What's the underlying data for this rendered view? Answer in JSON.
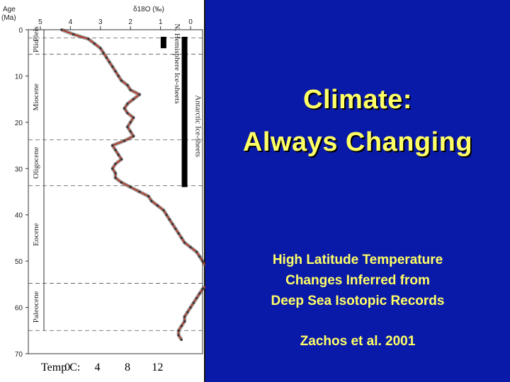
{
  "slide": {
    "title_lines": [
      "Climate:",
      "Always Changing"
    ],
    "subtitle_lines": [
      "High Latitude Temperature",
      "Changes Inferred from",
      "Deep Sea Isotopic Records"
    ],
    "citation": "Zachos et al. 2001",
    "colors": {
      "background": "#0a1aa8",
      "text": "#ffff66",
      "curve": "#b23a2a"
    }
  },
  "chart_data": {
    "type": "line",
    "title": "δ18O (‰)",
    "ylabel_lines": [
      "Age",
      "(Ma)"
    ],
    "x_axis": {
      "ticks": [
        5,
        4,
        3,
        2,
        1,
        0
      ],
      "range": [
        5.4,
        -0.4
      ],
      "position": "top"
    },
    "y_axis": {
      "ticks": [
        0,
        10,
        20,
        30,
        40,
        50,
        60,
        70
      ],
      "range": [
        0,
        70
      ],
      "reversed": true
    },
    "temp_scale": {
      "label": "Temp C:",
      "ticks": [
        "0",
        "4",
        "8",
        "12"
      ],
      "positions_d18O": [
        4.1,
        3.1,
        2.1,
        1.1
      ]
    },
    "epochs": [
      {
        "name": "Pleis",
        "top": 0,
        "bottom": 1.8
      },
      {
        "name": "Plio",
        "top": 1.8,
        "bottom": 5.3
      },
      {
        "name": "Miocene",
        "top": 5.3,
        "bottom": 23.8
      },
      {
        "name": "Oligocene",
        "top": 23.8,
        "bottom": 33.7
      },
      {
        "name": "Eocene",
        "top": 33.7,
        "bottom": 54.8
      },
      {
        "name": "Paleocene",
        "top": 54.8,
        "bottom": 65.0
      }
    ],
    "ice_sheets": [
      {
        "name": "N. Hemisphere Ice-sheets",
        "from_age": 0,
        "to_age": 4,
        "d18O": 0.9
      },
      {
        "name": "Antarctic Ice-sheets",
        "from_age": 0,
        "to_age": 34,
        "d18O": 0.2
      }
    ],
    "series": [
      {
        "x": [
          0,
          1,
          2,
          3,
          4,
          5,
          6,
          7,
          8,
          9,
          10,
          11,
          12,
          13,
          14,
          15,
          16,
          17,
          18,
          19,
          20,
          21,
          22,
          23,
          24,
          25,
          26,
          27,
          28,
          29,
          30,
          31,
          32,
          33,
          34,
          35,
          36,
          37,
          38,
          39,
          40,
          41,
          42,
          43,
          44,
          45,
          46,
          47,
          48,
          49,
          50,
          51,
          52,
          53,
          54,
          55,
          56,
          57,
          58,
          59,
          60,
          61,
          62,
          63,
          64,
          65,
          66,
          67
        ],
        "y": [
          4.3,
          3.9,
          3.4,
          3.2,
          3.0,
          2.9,
          2.8,
          2.7,
          2.6,
          2.5,
          2.4,
          2.3,
          2.1,
          2.0,
          1.7,
          1.9,
          2.1,
          2.2,
          2.1,
          1.9,
          2.0,
          2.1,
          2.0,
          1.9,
          2.2,
          2.6,
          2.5,
          2.4,
          2.3,
          2.5,
          2.6,
          2.5,
          2.5,
          2.3,
          2.0,
          1.7,
          1.4,
          1.3,
          1.1,
          0.9,
          0.8,
          0.7,
          0.6,
          0.5,
          0.4,
          0.3,
          0.2,
          0.0,
          -0.2,
          -0.3,
          -0.4,
          -0.5,
          -0.6,
          -0.7,
          -0.8,
          -0.6,
          -0.4,
          -0.3,
          -0.2,
          -0.1,
          0.0,
          0.1,
          0.2,
          0.2,
          0.3,
          0.4,
          0.4,
          0.3
        ]
      }
    ]
  }
}
